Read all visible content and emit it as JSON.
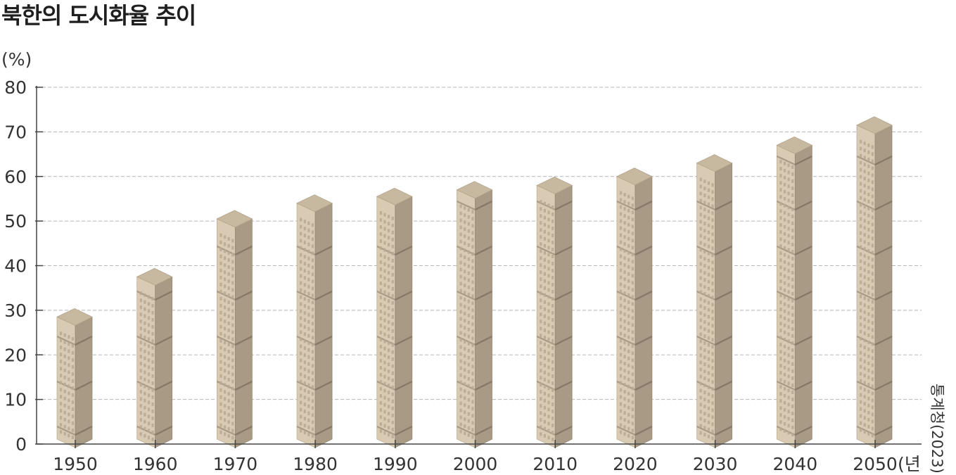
{
  "chart_data": {
    "type": "bar",
    "title": "북한의 도시화율 추이",
    "ylabel": "(%)",
    "xlabel": "(년)",
    "source": "통계청(2023)",
    "categories": [
      "1950",
      "1960",
      "1970",
      "1980",
      "1990",
      "2000",
      "2010",
      "2020",
      "2030",
      "2040",
      "2050"
    ],
    "values": [
      28.5,
      37.5,
      50.5,
      54,
      55.5,
      57,
      58,
      60,
      63,
      67,
      71.5
    ],
    "ylim": [
      0,
      80
    ],
    "yticks": [
      "0",
      "10",
      "20",
      "30",
      "40",
      "50",
      "60",
      "70",
      "80"
    ],
    "grid": true,
    "style": "isometric building columns",
    "colors": {
      "front": "#d9cbb3",
      "side": "#a89a84",
      "top": "#c7b8a0",
      "window": "#b8aa92",
      "grid": "#b5b5b5",
      "axis": "#444444"
    }
  }
}
